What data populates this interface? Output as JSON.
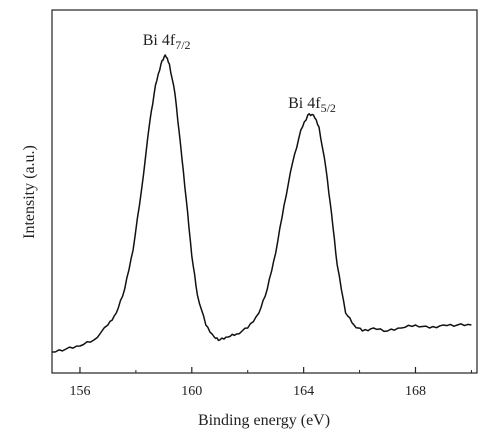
{
  "chart_data": {
    "type": "line",
    "xlabel": "Binding energy (eV)",
    "ylabel": "Intensity (a.u.)",
    "xlim": [
      155,
      170.2
    ],
    "ylim": [
      0,
      1.0
    ],
    "x_ticks": [
      "156",
      "160",
      "164",
      "168"
    ],
    "y_ticks_shown": false,
    "grid": false,
    "legend": "none",
    "annotations": [
      {
        "main": "Bi 4f",
        "sub": "7/2",
        "x": 159.1,
        "y": 1.02
      },
      {
        "main": "Bi 4f",
        "sub": "5/2",
        "x": 164.3,
        "y": 0.81
      }
    ],
    "series": [
      {
        "x": [
          155.0,
          155.5,
          156.0,
          156.5,
          157.0,
          157.3,
          157.6,
          157.9,
          158.2,
          158.5,
          158.7,
          158.9,
          159.05,
          159.2,
          159.4,
          159.6,
          159.8,
          160.0,
          160.2,
          160.5,
          160.8,
          161.0,
          161.3,
          161.6,
          162.0,
          162.4,
          162.7,
          163.0,
          163.3,
          163.6,
          163.9,
          164.15,
          164.35,
          164.55,
          164.8,
          165.0,
          165.2,
          165.5,
          165.8,
          166.1,
          166.5,
          167.0,
          167.5,
          168.0,
          168.5,
          169.0,
          169.5,
          170.0
        ],
        "y": [
          0.01,
          0.02,
          0.03,
          0.05,
          0.1,
          0.14,
          0.22,
          0.35,
          0.55,
          0.78,
          0.9,
          0.97,
          1.0,
          0.97,
          0.87,
          0.7,
          0.52,
          0.33,
          0.2,
          0.1,
          0.06,
          0.05,
          0.06,
          0.07,
          0.09,
          0.14,
          0.22,
          0.34,
          0.5,
          0.64,
          0.75,
          0.8,
          0.8,
          0.76,
          0.62,
          0.47,
          0.3,
          0.14,
          0.1,
          0.08,
          0.09,
          0.08,
          0.09,
          0.1,
          0.09,
          0.1,
          0.1,
          0.1
        ]
      }
    ]
  }
}
